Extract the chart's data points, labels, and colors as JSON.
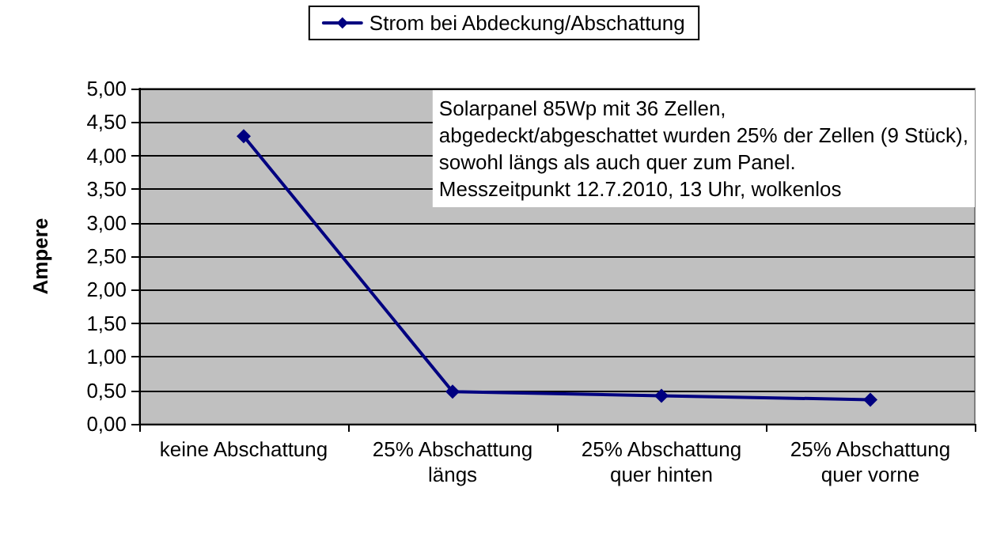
{
  "chart_data": {
    "type": "line",
    "ylabel": "Ampere",
    "categories": [
      "keine Abschattung",
      "25% Abschattung\nlängs",
      "25% Abschattung\nquer hinten",
      "25% Abschattung\nquer vorne"
    ],
    "series": [
      {
        "name": "Strom bei Abdeckung/Abschattung",
        "color": "#000080",
        "values": [
          4.29,
          0.48,
          0.42,
          0.36
        ]
      }
    ],
    "ylim": [
      0,
      5
    ],
    "yticks": [
      {
        "value": 0,
        "label": "0,00"
      },
      {
        "value": 0.5,
        "label": "0,50"
      },
      {
        "value": 1,
        "label": "1,00"
      },
      {
        "value": 1.5,
        "label": "1,50"
      },
      {
        "value": 2,
        "label": "2,00"
      },
      {
        "value": 2.5,
        "label": "2,50"
      },
      {
        "value": 3,
        "label": "3,00"
      },
      {
        "value": 3.5,
        "label": "3,50"
      },
      {
        "value": 4,
        "label": "4,00"
      },
      {
        "value": 4.5,
        "label": "4,50"
      },
      {
        "value": 5,
        "label": "5,00"
      }
    ],
    "grid": "y",
    "legend": "top",
    "marker": "diamond",
    "line_style": "solid",
    "annotations": [
      "Solarpanel 85Wp mit 36 Zellen,\nabgedeckt/abgeschattet wurden 25% der Zellen (9 Stück),\nsowohl längs als auch quer zum Panel.\nMesszeitpunkt 12.7.2010, 13 Uhr, wolkenlos"
    ]
  }
}
